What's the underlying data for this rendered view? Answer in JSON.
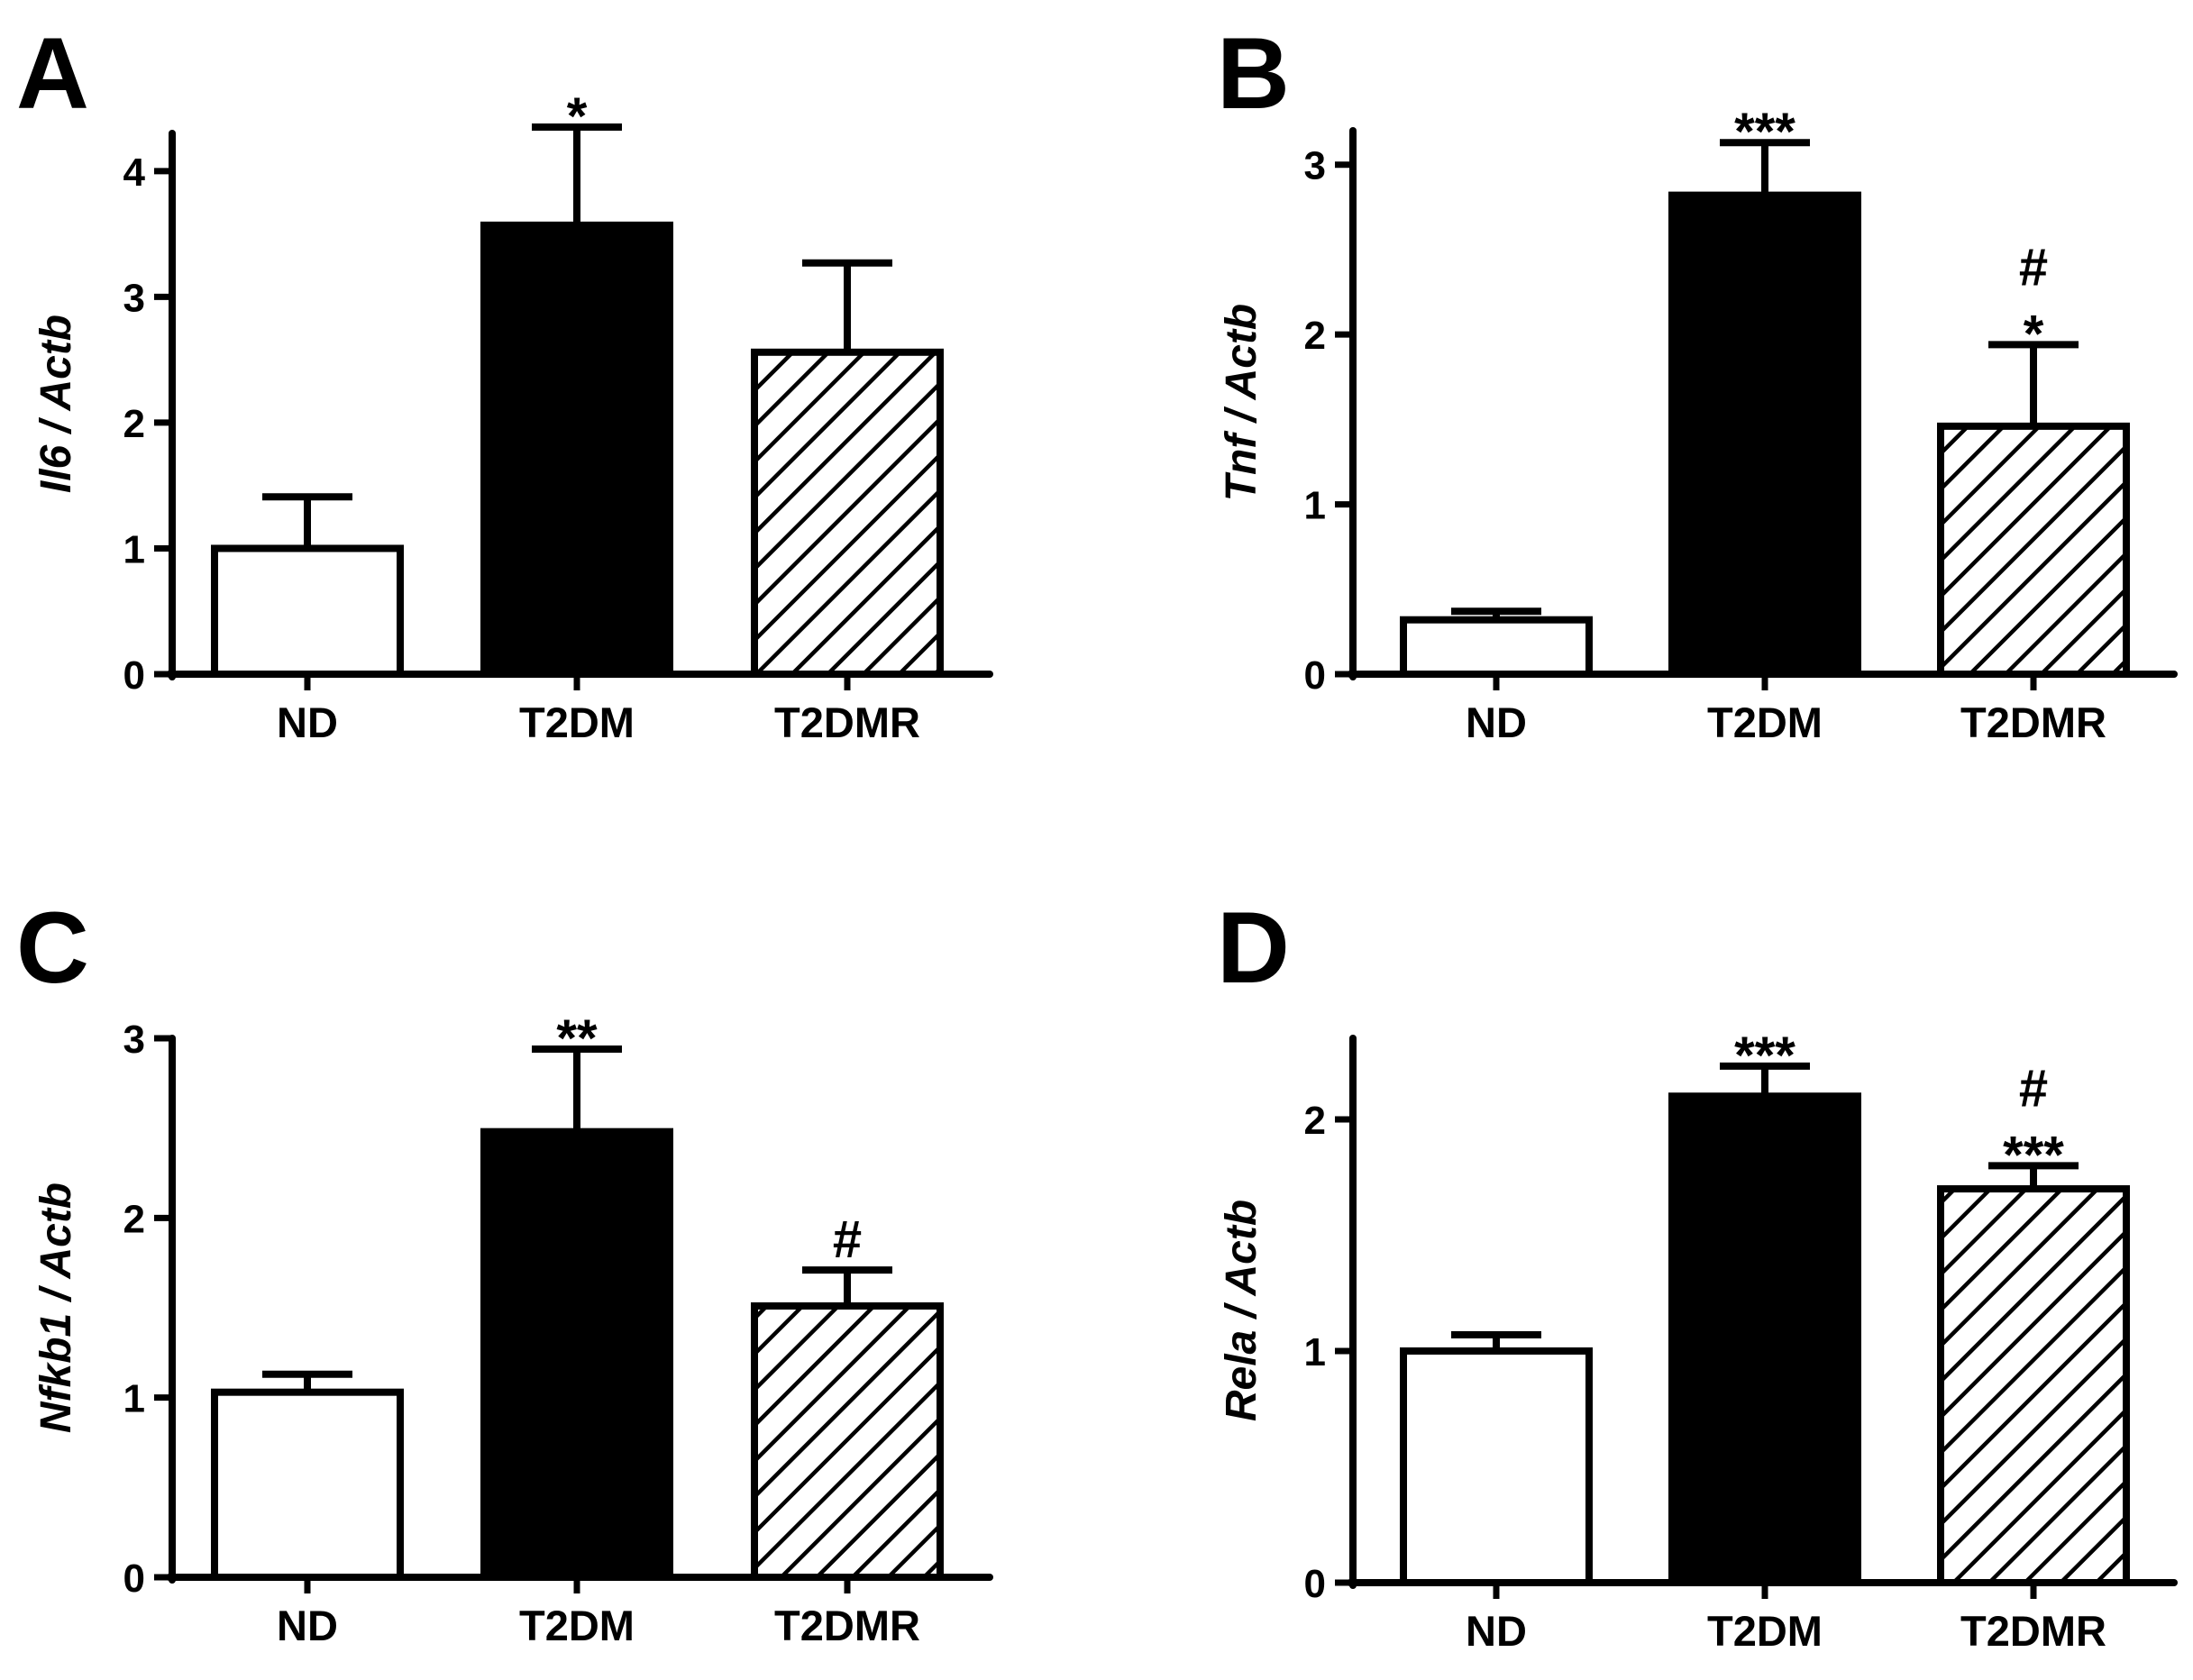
{
  "chart_data": [
    {
      "type": "bar",
      "panel": "A",
      "ylabel": "Il6 / Actb",
      "ylim": [
        0,
        4.3
      ],
      "yticks": [
        0,
        1,
        2,
        3,
        4
      ],
      "categories": [
        "ND",
        "T2DM",
        "T2DMR"
      ],
      "values": [
        1.0,
        3.57,
        2.56
      ],
      "errors": [
        0.41,
        0.78,
        0.71
      ],
      "fills": [
        "white",
        "black",
        "hatched"
      ],
      "annotations": [
        "",
        "*",
        ""
      ]
    },
    {
      "type": "bar",
      "panel": "B",
      "ylabel": "Tnf / Actb",
      "ylim": [
        0,
        3.2
      ],
      "yticks": [
        0,
        1,
        2,
        3
      ],
      "categories": [
        "ND",
        "T2DM",
        "T2DMR"
      ],
      "values": [
        0.32,
        2.82,
        1.46
      ],
      "errors": [
        0.05,
        0.31,
        0.48
      ],
      "fills": [
        "white",
        "black",
        "hatched"
      ],
      "annotations": [
        "",
        "***",
        "#\n*"
      ]
    },
    {
      "type": "bar",
      "panel": "C",
      "ylabel": "Nfkb1 / Actb",
      "ylim": [
        0,
        3.0
      ],
      "yticks": [
        0,
        1,
        2,
        3
      ],
      "categories": [
        "ND",
        "T2DM",
        "T2DMR"
      ],
      "values": [
        1.03,
        2.48,
        1.51
      ],
      "errors": [
        0.1,
        0.46,
        0.2
      ],
      "fills": [
        "white",
        "black",
        "hatched"
      ],
      "annotations": [
        "",
        "**",
        "#"
      ]
    },
    {
      "type": "bar",
      "panel": "D",
      "ylabel": "Rela / Actb",
      "ylim": [
        0,
        2.35
      ],
      "yticks": [
        0,
        1,
        2
      ],
      "categories": [
        "ND",
        "T2DM",
        "T2DMR"
      ],
      "values": [
        1.0,
        2.1,
        1.7
      ],
      "errors": [
        0.07,
        0.13,
        0.1
      ],
      "fills": [
        "white",
        "black",
        "hatched"
      ],
      "annotations": [
        "",
        "***",
        "#\n***"
      ]
    }
  ]
}
